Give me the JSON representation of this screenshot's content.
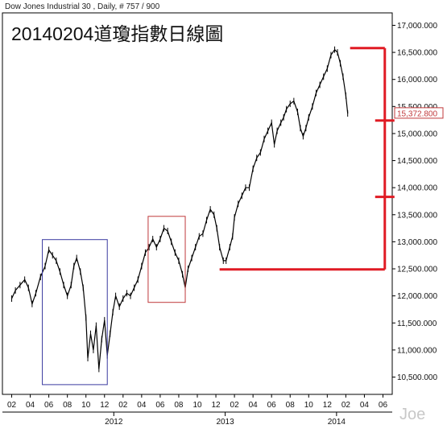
{
  "chart_data": {
    "type": "line",
    "header": "Dow Jones Industrial 30 , Daily, # 757 / 900",
    "title": "20140204道瓊指數日線圖",
    "watermark": "Joe",
    "last_value_label": "15,372.800",
    "y_axis": {
      "ylim": [
        10180,
        17230
      ],
      "ticks": [
        10500,
        11000,
        11500,
        12000,
        12500,
        13000,
        13500,
        14000,
        14500,
        15000,
        15500,
        16000,
        16500,
        17000
      ],
      "tick_labels": [
        "10,500.000",
        "11,000.000",
        "11,500.000",
        "12,000.000",
        "12,500.000",
        "13,000.000",
        "13,500.000",
        "14,000.000",
        "14,500.000",
        "15,000.000",
        "15,500.000",
        "16,000.000",
        "16,500.000",
        "17,000.000"
      ]
    },
    "x_axis": {
      "month_labels": [
        "02",
        "04",
        "06",
        "08",
        "10",
        "12",
        "02",
        "04",
        "06",
        "08",
        "10",
        "12",
        "02",
        "04",
        "06",
        "08",
        "10",
        "12",
        "02",
        "04",
        "06"
      ],
      "year_labels": [
        {
          "label": "2012",
          "after_month_index": 5.5
        },
        {
          "label": "2013",
          "after_month_index": 11.5
        },
        {
          "label": "2014",
          "after_month_index": 17.5
        }
      ],
      "month_range": [
        -0.5,
        20.5
      ]
    },
    "series": [
      {
        "color": "#000000",
        "points": [
          [
            0.0,
            11950
          ],
          [
            0.2,
            12100
          ],
          [
            0.45,
            12200
          ],
          [
            0.7,
            12300
          ],
          [
            0.9,
            12150
          ],
          [
            1.1,
            11850
          ],
          [
            1.3,
            12050
          ],
          [
            1.55,
            12350
          ],
          [
            1.8,
            12550
          ],
          [
            2.0,
            12850
          ],
          [
            2.2,
            12750
          ],
          [
            2.4,
            12650
          ],
          [
            2.6,
            12450
          ],
          [
            2.8,
            12200
          ],
          [
            3.0,
            12000
          ],
          [
            3.2,
            12200
          ],
          [
            3.35,
            12550
          ],
          [
            3.5,
            12700
          ],
          [
            3.7,
            12450
          ],
          [
            3.85,
            12150
          ],
          [
            4.0,
            11600
          ],
          [
            4.1,
            10850
          ],
          [
            4.25,
            11300
          ],
          [
            4.4,
            11000
          ],
          [
            4.55,
            11450
          ],
          [
            4.7,
            10650
          ],
          [
            4.85,
            11200
          ],
          [
            5.0,
            11550
          ],
          [
            5.15,
            10900
          ],
          [
            5.3,
            11300
          ],
          [
            5.45,
            11700
          ],
          [
            5.6,
            12000
          ],
          [
            5.8,
            11800
          ],
          [
            6.0,
            11950
          ],
          [
            6.2,
            12050
          ],
          [
            6.4,
            12000
          ],
          [
            6.6,
            12150
          ],
          [
            6.8,
            12300
          ],
          [
            7.0,
            12550
          ],
          [
            7.2,
            12800
          ],
          [
            7.4,
            12900
          ],
          [
            7.6,
            13050
          ],
          [
            7.8,
            12900
          ],
          [
            8.0,
            13050
          ],
          [
            8.2,
            13250
          ],
          [
            8.4,
            13200
          ],
          [
            8.6,
            13000
          ],
          [
            8.8,
            12800
          ],
          [
            9.0,
            12650
          ],
          [
            9.2,
            12400
          ],
          [
            9.35,
            12150
          ],
          [
            9.5,
            12500
          ],
          [
            9.7,
            12700
          ],
          [
            9.9,
            12900
          ],
          [
            10.1,
            13100
          ],
          [
            10.3,
            13150
          ],
          [
            10.5,
            13400
          ],
          [
            10.7,
            13600
          ],
          [
            10.9,
            13500
          ],
          [
            11.05,
            13250
          ],
          [
            11.2,
            12900
          ],
          [
            11.4,
            12650
          ],
          [
            11.55,
            12650
          ],
          [
            11.75,
            12900
          ],
          [
            11.9,
            13100
          ],
          [
            12.0,
            13450
          ],
          [
            12.2,
            13700
          ],
          [
            12.4,
            13850
          ],
          [
            12.6,
            14000
          ],
          [
            12.8,
            14000
          ],
          [
            13.0,
            14350
          ],
          [
            13.2,
            14550
          ],
          [
            13.4,
            14650
          ],
          [
            13.6,
            14900
          ],
          [
            13.8,
            15050
          ],
          [
            14.0,
            15200
          ],
          [
            14.15,
            14800
          ],
          [
            14.3,
            15050
          ],
          [
            14.5,
            15200
          ],
          [
            14.65,
            15300
          ],
          [
            14.8,
            15450
          ],
          [
            15.0,
            15550
          ],
          [
            15.2,
            15600
          ],
          [
            15.4,
            15400
          ],
          [
            15.55,
            15100
          ],
          [
            15.7,
            14950
          ],
          [
            15.85,
            15100
          ],
          [
            16.0,
            15300
          ],
          [
            16.2,
            15500
          ],
          [
            16.4,
            15750
          ],
          [
            16.6,
            15900
          ],
          [
            16.8,
            16050
          ],
          [
            17.0,
            16200
          ],
          [
            17.2,
            16450
          ],
          [
            17.4,
            16550
          ],
          [
            17.55,
            16500
          ],
          [
            17.7,
            16300
          ],
          [
            17.85,
            16050
          ],
          [
            18.0,
            15700
          ],
          [
            18.1,
            15372
          ]
        ]
      }
    ],
    "annotation_boxes": [
      {
        "color": "#3a3aa0",
        "x_range": [
          1.65,
          5.15
        ],
        "y_range": [
          10360,
          13040
        ]
      },
      {
        "color": "#c0393b",
        "x_range": [
          7.35,
          9.35
        ],
        "y_range": [
          11880,
          13470
        ]
      }
    ],
    "annotation_lines": {
      "color": "#e01b24",
      "top_level": 16580,
      "bottom_level": 12490,
      "vertical_x": 20.1,
      "mid_levels": [
        15240,
        13830
      ]
    },
    "grid": false,
    "legend": "none"
  }
}
